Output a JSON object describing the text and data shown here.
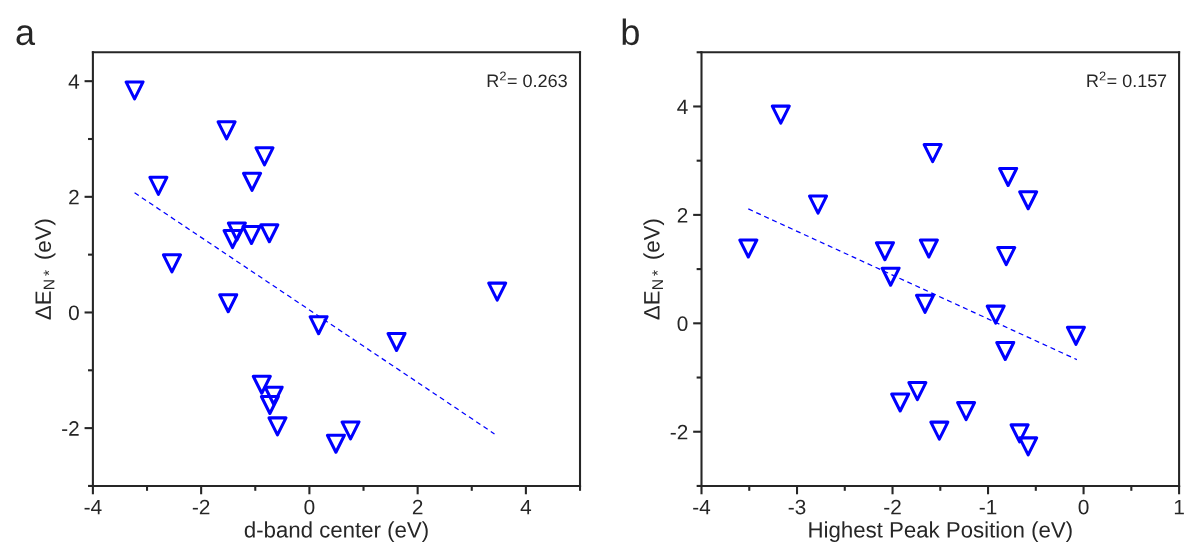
{
  "chart_data": [
    {
      "type": "scatter",
      "xlabel": "d-band center (eV)",
      "ylabel": "ΔE$_{N*}$ (eV)",
      "annotations": [
        "a",
        "R$^{2}$= 0.263"
      ],
      "xlim": [
        -4,
        5
      ],
      "ylim": [
        -3,
        4.5
      ],
      "xticks": [
        -4,
        -2,
        0,
        2,
        4
      ],
      "yticks": [
        -2,
        0,
        2,
        4
      ],
      "grid": false,
      "legend": false,
      "series": [
        {
          "marker": "triangle",
          "color": "#0000ff",
          "x": [
            -3.23,
            -1.53,
            -0.83,
            -2.79,
            -1.06,
            -1.34,
            -1.42,
            -1.07,
            -0.74,
            -2.54,
            -1.5,
            3.47,
            0.17,
            1.61,
            -0.88,
            -0.66,
            -0.73,
            -0.59,
            0.76,
            0.49
          ],
          "values": [
            3.84,
            3.15,
            2.7,
            2.19,
            2.26,
            1.4,
            1.27,
            1.34,
            1.37,
            0.85,
            0.16,
            0.36,
            -0.22,
            -0.51,
            -1.25,
            -1.44,
            -1.6,
            -1.97,
            -2.04,
            -2.27
          ]
        },
        {
          "type": "line",
          "line_style": "dashed",
          "color": "#0000ff",
          "x": [
            -3.23,
            3.42
          ],
          "values": [
            2.07,
            -2.1
          ]
        }
      ]
    },
    {
      "type": "scatter",
      "xlabel": "Highest Peak Position (eV)",
      "ylabel": "ΔE$_{N*}$ (eV)",
      "annotations": [
        "b",
        "R$^{2}$= 0.157"
      ],
      "xlim": [
        -4,
        1
      ],
      "ylim": [
        -3,
        5
      ],
      "xticks": [
        -4,
        -3,
        -2,
        -1,
        0,
        1
      ],
      "yticks": [
        -2,
        0,
        2,
        4
      ],
      "grid": false,
      "legend": false,
      "series": [
        {
          "marker": "triangle",
          "color": "#0000ff",
          "x": [
            -3.17,
            -1.58,
            -0.79,
            -0.58,
            -2.78,
            -3.51,
            -2.08,
            -1.62,
            -0.81,
            -2.02,
            -1.66,
            -0.92,
            -0.08,
            -0.82,
            -1.74,
            -1.92,
            -1.23,
            -1.51,
            -0.67,
            -0.58
          ],
          "values": [
            3.85,
            3.14,
            2.7,
            2.27,
            2.19,
            1.38,
            1.33,
            1.38,
            1.24,
            0.86,
            0.36,
            0.16,
            -0.23,
            -0.51,
            -1.25,
            -1.46,
            -1.62,
            -1.98,
            -2.03,
            -2.27
          ]
        },
        {
          "type": "line",
          "line_style": "dashed",
          "color": "#0000ff",
          "x": [
            -3.51,
            -0.07
          ],
          "values": [
            2.11,
            -0.67
          ]
        }
      ]
    }
  ]
}
